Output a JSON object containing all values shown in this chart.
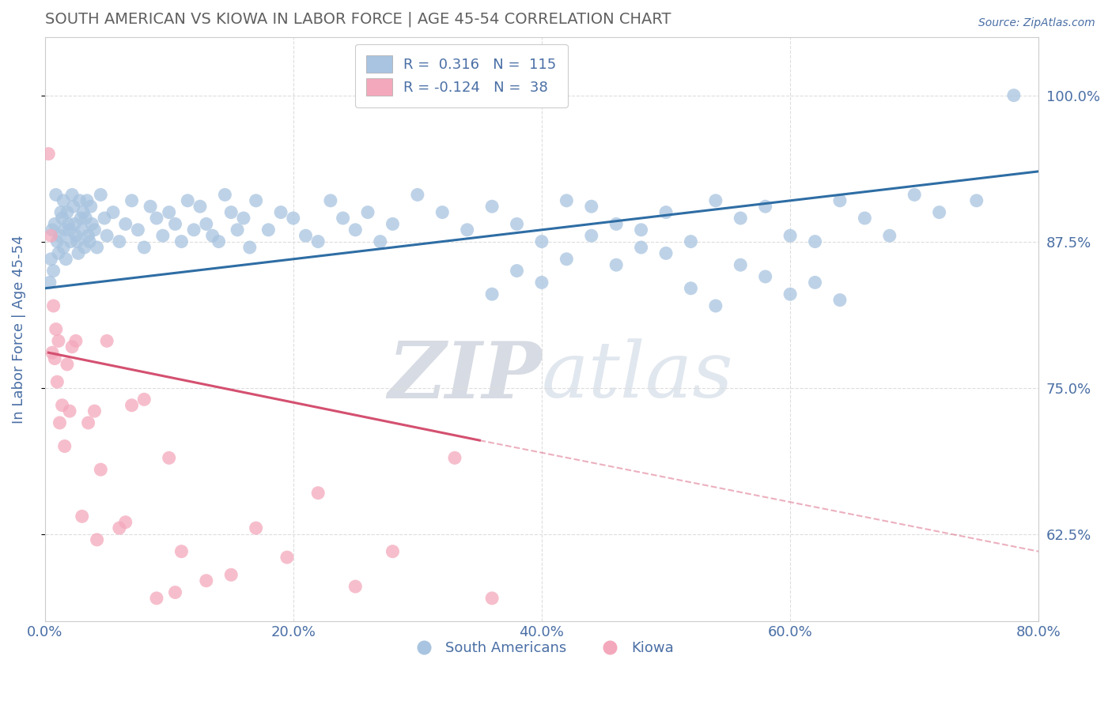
{
  "title": "SOUTH AMERICAN VS KIOWA IN LABOR FORCE | AGE 45-54 CORRELATION CHART",
  "source": "Source: ZipAtlas.com",
  "ylabel": "In Labor Force | Age 45-54",
  "x_tick_labels": [
    "0.0%",
    "20.0%",
    "40.0%",
    "60.0%",
    "80.0%"
  ],
  "x_tick_vals": [
    0.0,
    20.0,
    40.0,
    60.0,
    80.0
  ],
  "y_tick_labels": [
    "62.5%",
    "75.0%",
    "87.5%",
    "100.0%"
  ],
  "y_tick_vals": [
    62.5,
    75.0,
    87.5,
    100.0
  ],
  "xlim": [
    0.0,
    80.0
  ],
  "ylim": [
    55.0,
    105.0
  ],
  "legend_bottom_labels": [
    "South Americans",
    "Kiowa"
  ],
  "R_blue": 0.316,
  "N_blue": 115,
  "R_pink": -0.124,
  "N_pink": 38,
  "blue_color": "#a8c4e0",
  "blue_line_color": "#2e6da4",
  "pink_color": "#f4a8bc",
  "pink_line_color": "#d45070",
  "label_color": "#4a6fa5",
  "title_color": "#606060",
  "grid_color": "#dddddd",
  "watermark_color": "#d0d8e8",
  "background_color": "#ffffff",
  "blue_line_x0": 0.0,
  "blue_line_y0": 83.5,
  "blue_line_x1": 80.0,
  "blue_line_y1": 93.5,
  "pink_solid_x0": 0.3,
  "pink_solid_y0": 78.0,
  "pink_solid_x1": 35.0,
  "pink_solid_y1": 70.5,
  "pink_dash_x0": 35.0,
  "pink_dash_y0": 70.5,
  "pink_dash_x1": 80.0,
  "pink_dash_y1": 61.0,
  "blue_scatter_x": [
    0.4,
    0.5,
    0.6,
    0.7,
    0.8,
    0.9,
    1.0,
    1.1,
    1.2,
    1.3,
    1.4,
    1.5,
    1.5,
    1.6,
    1.7,
    1.8,
    1.9,
    2.0,
    2.1,
    2.2,
    2.3,
    2.4,
    2.5,
    2.6,
    2.7,
    2.8,
    2.9,
    3.0,
    3.1,
    3.2,
    3.3,
    3.4,
    3.5,
    3.6,
    3.7,
    3.8,
    4.0,
    4.2,
    4.5,
    4.8,
    5.0,
    5.5,
    6.0,
    6.5,
    7.0,
    7.5,
    8.0,
    8.5,
    9.0,
    9.5,
    10.0,
    10.5,
    11.0,
    11.5,
    12.0,
    12.5,
    13.0,
    13.5,
    14.0,
    14.5,
    15.0,
    15.5,
    16.0,
    16.5,
    17.0,
    18.0,
    19.0,
    20.0,
    21.0,
    22.0,
    23.0,
    24.0,
    25.0,
    26.0,
    27.0,
    28.0,
    30.0,
    32.0,
    34.0,
    36.0,
    38.0,
    40.0,
    42.0,
    44.0,
    46.0,
    48.0,
    50.0,
    52.0,
    54.0,
    56.0,
    58.0,
    60.0,
    62.0,
    64.0,
    66.0,
    68.0,
    70.0,
    72.0,
    75.0,
    78.0,
    36.0,
    38.0,
    40.0,
    42.0,
    44.0,
    46.0,
    48.0,
    50.0,
    52.0,
    54.0,
    56.0,
    58.0,
    60.0,
    62.0,
    64.0
  ],
  "blue_scatter_y": [
    84.0,
    86.0,
    88.5,
    85.0,
    89.0,
    91.5,
    87.5,
    86.5,
    88.0,
    90.0,
    89.5,
    87.0,
    91.0,
    88.5,
    86.0,
    90.0,
    89.0,
    88.5,
    87.5,
    91.5,
    90.5,
    89.0,
    88.0,
    87.5,
    86.5,
    91.0,
    89.5,
    88.5,
    90.0,
    87.0,
    89.5,
    91.0,
    88.0,
    87.5,
    90.5,
    89.0,
    88.5,
    87.0,
    91.5,
    89.5,
    88.0,
    90.0,
    87.5,
    89.0,
    91.0,
    88.5,
    87.0,
    90.5,
    89.5,
    88.0,
    90.0,
    89.0,
    87.5,
    91.0,
    88.5,
    90.5,
    89.0,
    88.0,
    87.5,
    91.5,
    90.0,
    88.5,
    89.5,
    87.0,
    91.0,
    88.5,
    90.0,
    89.5,
    88.0,
    87.5,
    91.0,
    89.5,
    88.5,
    90.0,
    87.5,
    89.0,
    91.5,
    90.0,
    88.5,
    90.5,
    89.0,
    87.5,
    91.0,
    90.5,
    89.0,
    88.5,
    90.0,
    87.5,
    91.0,
    89.5,
    90.5,
    88.0,
    87.5,
    91.0,
    89.5,
    88.0,
    91.5,
    90.0,
    91.0,
    100.0,
    83.0,
    85.0,
    84.0,
    86.0,
    88.0,
    85.5,
    87.0,
    86.5,
    83.5,
    82.0,
    85.5,
    84.5,
    83.0,
    84.0,
    82.5
  ],
  "pink_scatter_x": [
    0.3,
    0.5,
    0.6,
    0.7,
    0.8,
    0.9,
    1.0,
    1.1,
    1.2,
    1.4,
    1.6,
    1.8,
    2.0,
    2.5,
    3.0,
    3.5,
    4.0,
    4.5,
    5.0,
    6.0,
    7.0,
    8.0,
    9.0,
    10.0,
    11.0,
    13.0,
    15.0,
    17.0,
    19.5,
    22.0,
    25.0,
    28.0,
    33.0,
    36.0,
    2.2,
    4.2,
    6.5,
    10.5
  ],
  "pink_scatter_y": [
    95.0,
    88.0,
    78.0,
    82.0,
    77.5,
    80.0,
    75.5,
    79.0,
    72.0,
    73.5,
    70.0,
    77.0,
    73.0,
    79.0,
    64.0,
    72.0,
    73.0,
    68.0,
    79.0,
    63.0,
    73.5,
    74.0,
    57.0,
    69.0,
    61.0,
    58.5,
    59.0,
    63.0,
    60.5,
    66.0,
    58.0,
    61.0,
    69.0,
    57.0,
    78.5,
    62.0,
    63.5,
    57.5
  ]
}
